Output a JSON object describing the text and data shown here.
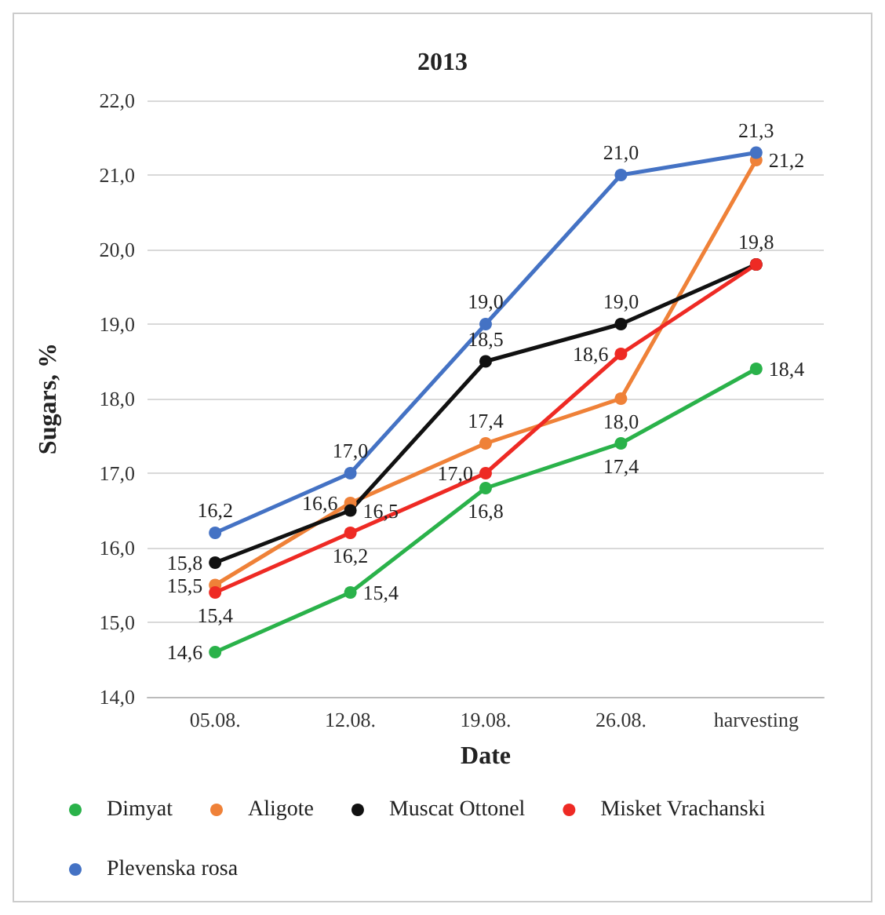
{
  "chart_data": {
    "type": "line",
    "title": "2013",
    "xlabel": "Date",
    "ylabel": "Sugars, %",
    "categories": [
      "05.08.",
      "12.08.",
      "19.08.",
      "26.08.",
      "harvesting"
    ],
    "series": [
      {
        "name": "Dimyat",
        "color": "#2ab24a",
        "values": [
          14.6,
          15.4,
          16.8,
          17.4,
          18.4
        ],
        "value_labels": [
          "14,6",
          "15,4",
          "16,8",
          "17,4",
          "18,4"
        ]
      },
      {
        "name": "Aligote",
        "color": "#ef8138",
        "values": [
          15.5,
          16.6,
          17.4,
          18.0,
          21.2
        ],
        "value_labels": [
          "15,5",
          "16,6",
          "17,4",
          "18,0",
          "21,2"
        ]
      },
      {
        "name": "Muscat Ottonel",
        "color": "#111111",
        "values": [
          15.8,
          16.5,
          18.5,
          19.0,
          19.8
        ],
        "value_labels": [
          "15,8",
          "16,5",
          "18,5",
          "19,0",
          "19,8"
        ]
      },
      {
        "name": "Misket Vrachanski",
        "color": "#ee2a24",
        "values": [
          15.4,
          16.2,
          17.0,
          18.6,
          19.8
        ],
        "value_labels": [
          "15,4",
          "16,2",
          "17,0",
          "18,6",
          null
        ]
      },
      {
        "name": "Plevenska rosa",
        "color": "#4472c4",
        "values": [
          16.2,
          17.0,
          19.0,
          21.0,
          21.3
        ],
        "value_labels": [
          "16,2",
          "17,0",
          "19,0",
          "21,0",
          "21,3"
        ]
      }
    ],
    "ylim": [
      14,
      22
    ],
    "yticks": [
      {
        "value": 14,
        "label": "14,0"
      },
      {
        "value": 15,
        "label": "15,0"
      },
      {
        "value": 16,
        "label": "16,0"
      },
      {
        "value": 17,
        "label": "17,0"
      },
      {
        "value": 18,
        "label": "18,0"
      },
      {
        "value": 19,
        "label": "19,0"
      },
      {
        "value": 20,
        "label": "20,0"
      },
      {
        "value": 21,
        "label": "21,0"
      },
      {
        "value": 22,
        "label": "22,0"
      }
    ],
    "grid": "y",
    "legend": "bottom",
    "marker": "circle",
    "line_style": "solid"
  }
}
